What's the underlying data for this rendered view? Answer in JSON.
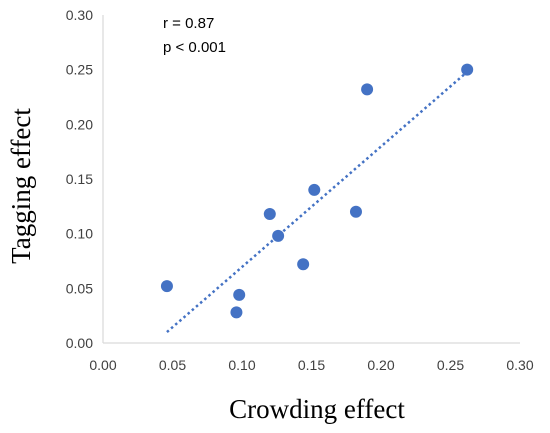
{
  "chart_data": {
    "type": "scatter",
    "title": "",
    "xlabel": "Crowding effect",
    "ylabel": "Tagging effect",
    "xlim": [
      0.0,
      0.3
    ],
    "ylim": [
      0.0,
      0.3
    ],
    "x_ticks": [
      "0.00",
      "0.05",
      "0.10",
      "0.15",
      "0.20",
      "0.25",
      "0.30"
    ],
    "y_ticks": [
      "0.00",
      "0.05",
      "0.10",
      "0.15",
      "0.20",
      "0.25",
      "0.30"
    ],
    "grid": false,
    "legend": "none",
    "series": [
      {
        "points": [
          {
            "x": 0.046,
            "y": 0.052
          },
          {
            "x": 0.096,
            "y": 0.028
          },
          {
            "x": 0.098,
            "y": 0.044
          },
          {
            "x": 0.12,
            "y": 0.118
          },
          {
            "x": 0.126,
            "y": 0.098
          },
          {
            "x": 0.144,
            "y": 0.072
          },
          {
            "x": 0.152,
            "y": 0.14
          },
          {
            "x": 0.182,
            "y": 0.12
          },
          {
            "x": 0.19,
            "y": 0.232
          },
          {
            "x": 0.262,
            "y": 0.25
          }
        ]
      }
    ],
    "trendline": {
      "style": "dotted",
      "x_start": 0.046,
      "y_start": 0.01,
      "x_end": 0.262,
      "y_end": 0.248
    },
    "annotations": [
      "r = 0.87",
      "p < 0.001"
    ],
    "colors": {
      "points": "#4472c4",
      "trendline": "#4472c4",
      "axis": "#d9d9d9"
    }
  }
}
